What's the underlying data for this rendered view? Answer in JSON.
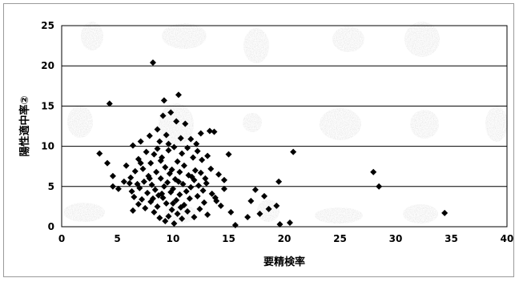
{
  "chart_data": {
    "type": "scatter",
    "title": "",
    "xlabel": "要精検率",
    "ylabel": "陽性適中率②",
    "xlim": [
      0,
      40
    ],
    "ylim": [
      0,
      25
    ],
    "xticks": [
      "0",
      "5",
      "10",
      "15",
      "20",
      "25",
      "30",
      "35",
      "40"
    ],
    "yticks": [
      "0",
      "5",
      "10",
      "15",
      "20",
      "25"
    ],
    "grid": "horizontal",
    "marker": "diamond",
    "marker_color": "#000000",
    "grid_color": "#000000",
    "series": [
      {
        "points": [
          [
            4.3,
            15.3
          ],
          [
            8.2,
            20.4
          ],
          [
            10.5,
            16.4
          ],
          [
            9.2,
            15.7
          ],
          [
            9.8,
            14.2
          ],
          [
            9.1,
            13.8
          ],
          [
            10.3,
            13.1
          ],
          [
            11.1,
            12.8
          ],
          [
            13.3,
            11.9
          ],
          [
            13.7,
            11.8
          ],
          [
            12.5,
            11.6
          ],
          [
            8.6,
            12.1
          ],
          [
            7.9,
            11.3
          ],
          [
            9.4,
            11.4
          ],
          [
            10.7,
            11.0
          ],
          [
            11.6,
            10.9
          ],
          [
            7.1,
            10.6
          ],
          [
            8.8,
            10.6
          ],
          [
            12.1,
            10.3
          ],
          [
            6.4,
            10.1
          ],
          [
            10.1,
            9.9
          ],
          [
            11.3,
            9.8
          ],
          [
            9.6,
            9.5
          ],
          [
            7.6,
            9.3
          ],
          [
            3.4,
            9.1
          ],
          [
            8.3,
            9.0
          ],
          [
            13.1,
            8.8
          ],
          [
            11.8,
            8.6
          ],
          [
            9.0,
            8.6
          ],
          [
            6.9,
            8.4
          ],
          [
            12.6,
            8.3
          ],
          [
            10.4,
            8.1
          ],
          [
            8.0,
            7.9
          ],
          [
            4.1,
            7.9
          ],
          [
            5.8,
            7.6
          ],
          [
            11.0,
            7.6
          ],
          [
            9.3,
            7.4
          ],
          [
            13.4,
            7.2
          ],
          [
            7.3,
            7.2
          ],
          [
            12.0,
            7.0
          ],
          [
            6.6,
            6.9
          ],
          [
            10.6,
            6.8
          ],
          [
            8.5,
            6.8
          ],
          [
            9.7,
            6.6
          ],
          [
            14.1,
            6.5
          ],
          [
            11.4,
            6.4
          ],
          [
            4.6,
            6.3
          ],
          [
            7.8,
            6.3
          ],
          [
            6.2,
            6.1
          ],
          [
            12.9,
            6.0
          ],
          [
            8.9,
            6.0
          ],
          [
            10.2,
            5.9
          ],
          [
            11.9,
            5.8
          ],
          [
            5.6,
            5.6
          ],
          [
            7.4,
            5.6
          ],
          [
            9.5,
            5.5
          ],
          [
            13.0,
            5.4
          ],
          [
            6.8,
            5.3
          ],
          [
            10.9,
            5.3
          ],
          [
            8.1,
            5.2
          ],
          [
            12.3,
            5.1
          ],
          [
            4.6,
            5.0
          ],
          [
            9.2,
            5.0
          ],
          [
            11.6,
            4.9
          ],
          [
            7.0,
            4.8
          ],
          [
            14.6,
            4.7
          ],
          [
            10.0,
            4.7
          ],
          [
            8.4,
            4.6
          ],
          [
            12.7,
            4.5
          ],
          [
            6.3,
            4.4
          ],
          [
            11.2,
            4.4
          ],
          [
            9.8,
            4.3
          ],
          [
            7.7,
            4.2
          ],
          [
            13.5,
            4.1
          ],
          [
            10.6,
            4.0
          ],
          [
            8.7,
            3.9
          ],
          [
            12.2,
            3.8
          ],
          [
            6.5,
            3.7
          ],
          [
            9.1,
            3.6
          ],
          [
            11.5,
            3.5
          ],
          [
            7.2,
            3.4
          ],
          [
            10.3,
            3.3
          ],
          [
            13.9,
            3.2
          ],
          [
            8.0,
            3.1
          ],
          [
            12.8,
            3.0
          ],
          [
            9.4,
            2.9
          ],
          [
            6.9,
            2.8
          ],
          [
            11.0,
            2.7
          ],
          [
            8.6,
            2.5
          ],
          [
            10.7,
            2.4
          ],
          [
            7.5,
            2.3
          ],
          [
            12.4,
            2.2
          ],
          [
            9.9,
            2.1
          ],
          [
            6.4,
            2.0
          ],
          [
            11.3,
            1.9
          ],
          [
            8.3,
            1.8
          ],
          [
            10.4,
            1.6
          ],
          [
            13.1,
            1.5
          ],
          [
            9.6,
            1.3
          ],
          [
            10.8,
            1.0
          ],
          [
            9.3,
            0.7
          ],
          [
            10.1,
            0.4
          ],
          [
            15.0,
            9.0
          ],
          [
            14.6,
            5.8
          ],
          [
            15.2,
            1.8
          ],
          [
            17.4,
            4.6
          ],
          [
            18.2,
            3.8
          ],
          [
            17.0,
            3.2
          ],
          [
            18.6,
            2.2
          ],
          [
            17.8,
            1.6
          ],
          [
            16.7,
            1.2
          ],
          [
            19.5,
            5.6
          ],
          [
            19.3,
            2.6
          ],
          [
            20.5,
            0.5
          ],
          [
            15.6,
            0.2
          ],
          [
            20.8,
            9.3
          ],
          [
            19.6,
            0.3
          ],
          [
            28.0,
            6.8
          ],
          [
            28.5,
            5.0
          ],
          [
            34.4,
            1.7
          ],
          [
            8.9,
            8.2
          ],
          [
            9.9,
            7.1
          ],
          [
            7.9,
            6.0
          ],
          [
            10.5,
            5.6
          ],
          [
            9.0,
            4.1
          ],
          [
            8.2,
            3.5
          ],
          [
            11.7,
            6.2
          ],
          [
            6.1,
            5.4
          ],
          [
            12.5,
            6.7
          ],
          [
            7.1,
            7.9
          ],
          [
            9.6,
            10.3
          ],
          [
            8.6,
            9.7
          ],
          [
            10.8,
            9.1
          ],
          [
            12.2,
            9.4
          ],
          [
            5.1,
            4.7
          ],
          [
            13.8,
            3.6
          ],
          [
            14.3,
            2.6
          ],
          [
            11.9,
            1.2
          ],
          [
            8.8,
            1.1
          ],
          [
            10.0,
            2.9
          ]
        ]
      }
    ]
  }
}
